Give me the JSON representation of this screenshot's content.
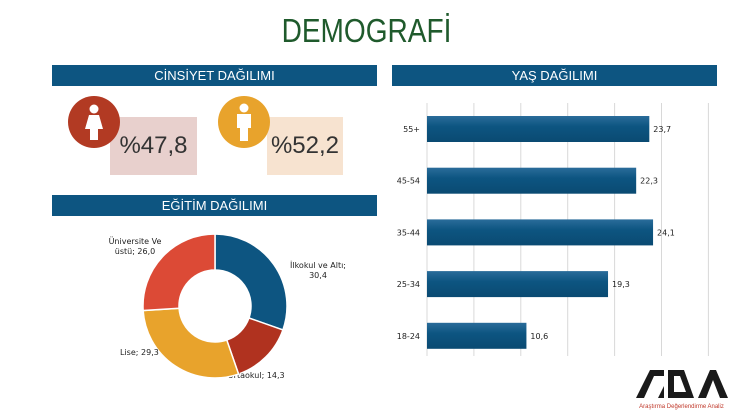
{
  "title": "DEMOGRAFİ",
  "gender": {
    "header": "CİNSİYET DAĞILIMI",
    "female": {
      "icon": "female-person-icon",
      "value": "%47,8",
      "circle_color": "#b23a23",
      "box_color": "#e8d0cd"
    },
    "male": {
      "icon": "male-person-icon",
      "value": "%52,2",
      "circle_color": "#e8a32c",
      "box_color": "#f7e3d0"
    }
  },
  "chart_data": [
    {
      "type": "bar",
      "orientation": "horizontal",
      "header": "YAŞ DAĞILIMI",
      "categories": [
        "55+",
        "45-54",
        "35-44",
        "25-34",
        "18-24"
      ],
      "values": [
        23.7,
        22.3,
        24.1,
        19.3,
        10.6
      ],
      "labels": [
        "23,7",
        "22,3",
        "24,1",
        "19,3",
        "10,6"
      ],
      "xlim": [
        0,
        30
      ],
      "grid": true,
      "color": "#0d5581"
    },
    {
      "type": "pie",
      "donut": true,
      "header": "EĞİTİM DAĞILIMI",
      "categories": [
        "İlkokul ve Altı",
        "Ortaokul",
        "Lise",
        "Üniversite Ve üstü"
      ],
      "values": [
        30.4,
        14.3,
        29.3,
        26.0
      ],
      "labels": [
        [
          "İlkokul ve Altı;",
          "30,4"
        ],
        [
          "Ortaokul; 14,3"
        ],
        [
          "Lise; 29,3"
        ],
        [
          "Üniversite Ve",
          "üstü; 26,0"
        ]
      ],
      "colors": [
        "#0d5581",
        "#b0321f",
        "#e8a32c",
        "#dc4a36"
      ]
    }
  ],
  "logo": {
    "text": "ADA",
    "tagline": "Araştırma Değerlendirme Analiz"
  }
}
